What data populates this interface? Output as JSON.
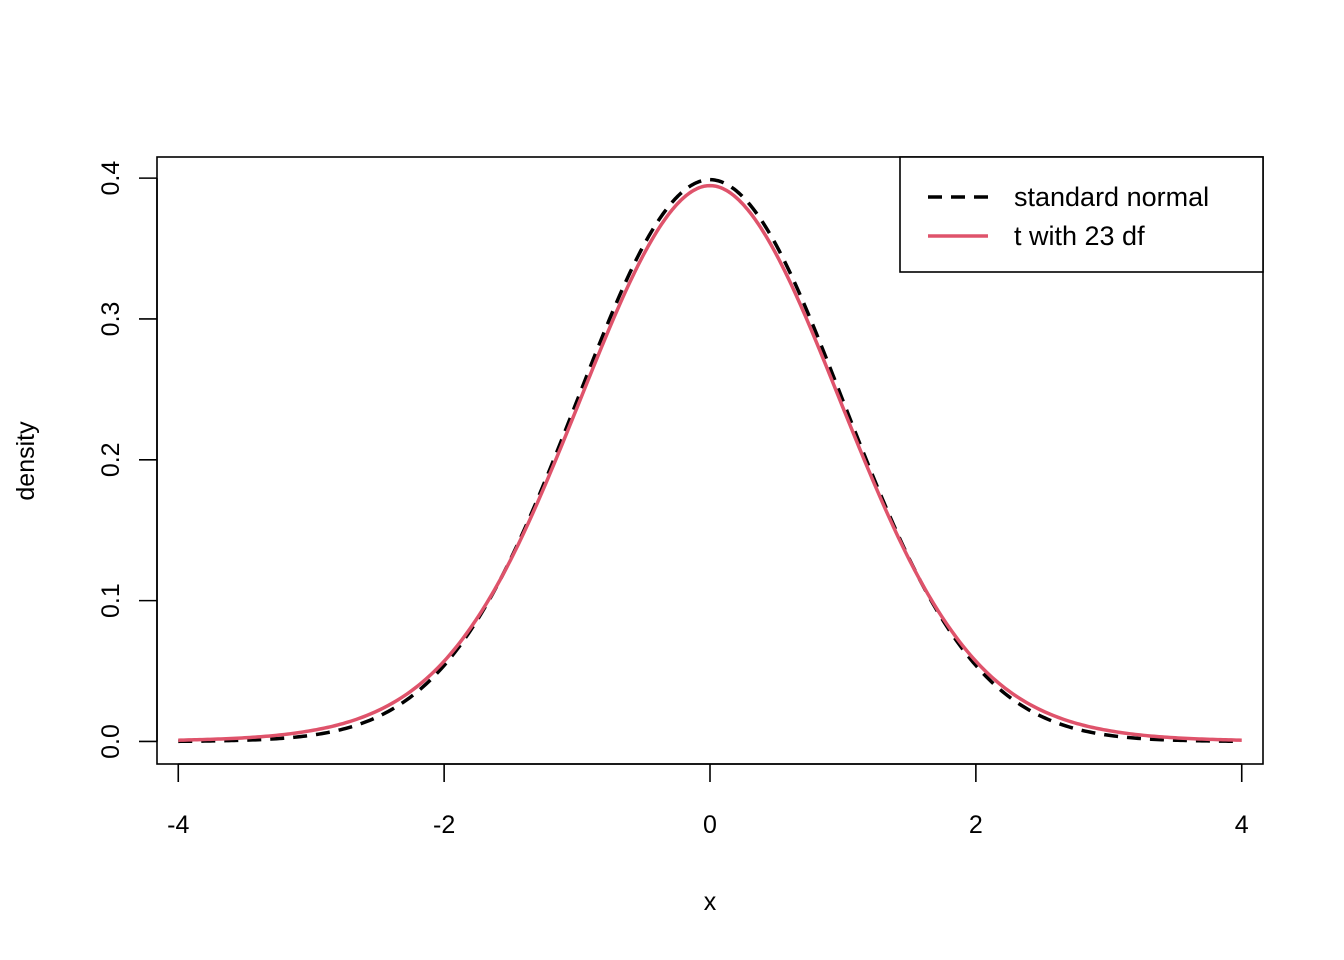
{
  "chart_data": {
    "type": "line",
    "title": "",
    "xlabel": "x",
    "ylabel": "density",
    "xlim": [
      -4.16,
      4.16
    ],
    "ylim": [
      -0.016,
      0.415
    ],
    "x_ticks": [
      -4,
      -2,
      0,
      2,
      4
    ],
    "x_tick_labels": [
      "-4",
      "-2",
      "0",
      "2",
      "4"
    ],
    "y_ticks": [
      0.0,
      0.1,
      0.2,
      0.3,
      0.4
    ],
    "y_tick_labels": [
      "0.0",
      "0.1",
      "0.2",
      "0.3",
      "0.4"
    ],
    "grid": false,
    "legend_position": "top-right",
    "x": [
      -4.0,
      -3.5,
      -3.0,
      -2.5,
      -2.0,
      -1.5,
      -1.0,
      -0.5,
      0.0,
      0.5,
      1.0,
      1.5,
      2.0,
      2.5,
      3.0,
      3.5,
      4.0
    ],
    "series": [
      {
        "name": "standard normal",
        "color": "#000000",
        "line_style": "dashed",
        "values": [
          0.0001,
          0.0009,
          0.0044,
          0.0175,
          0.054,
          0.1295,
          0.242,
          0.3521,
          0.3989,
          0.3521,
          0.242,
          0.1295,
          0.054,
          0.0175,
          0.0044,
          0.0009,
          0.0001
        ]
      },
      {
        "name": "t with 23 df",
        "color": "#DF536B",
        "line_style": "solid",
        "values": [
          0.0009,
          0.0026,
          0.0077,
          0.0218,
          0.057,
          0.1289,
          0.2371,
          0.3456,
          0.3947,
          0.3456,
          0.2371,
          0.1289,
          0.057,
          0.0218,
          0.0077,
          0.0026,
          0.0009
        ]
      }
    ]
  }
}
